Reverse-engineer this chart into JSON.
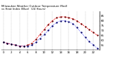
{
  "title_line1": "Milwaukee Weather Outdoor Temperature (Red)",
  "title_line2": "vs Heat Index (Blue)  (24 Hours)",
  "background_color": "#ffffff",
  "grid_color": "#aaaaaa",
  "hours": [
    0,
    1,
    2,
    3,
    4,
    5,
    6,
    7,
    8,
    9,
    10,
    11,
    12,
    13,
    14,
    15,
    16,
    17,
    18,
    19,
    20,
    21,
    22,
    23
  ],
  "temp_red": [
    58,
    57,
    56,
    55,
    54,
    54,
    55,
    57,
    61,
    66,
    71,
    76,
    80,
    83,
    84,
    84,
    83,
    82,
    80,
    77,
    74,
    71,
    68,
    65
  ],
  "heat_blue": [
    58,
    57,
    56,
    55,
    54,
    54,
    54,
    55,
    58,
    62,
    66,
    70,
    75,
    78,
    80,
    80,
    79,
    77,
    73,
    68,
    63,
    59,
    55,
    52
  ],
  "ylim": [
    50,
    90
  ],
  "ytick_vals": [
    55,
    60,
    65,
    70,
    75,
    80,
    85
  ],
  "tick_fontsize": 2.8,
  "title_fontsize": 2.8,
  "red_color": "#ff0000",
  "blue_color": "#0000ff",
  "black_color": "#000000",
  "line_width": 0.5,
  "marker_size": 1.0
}
